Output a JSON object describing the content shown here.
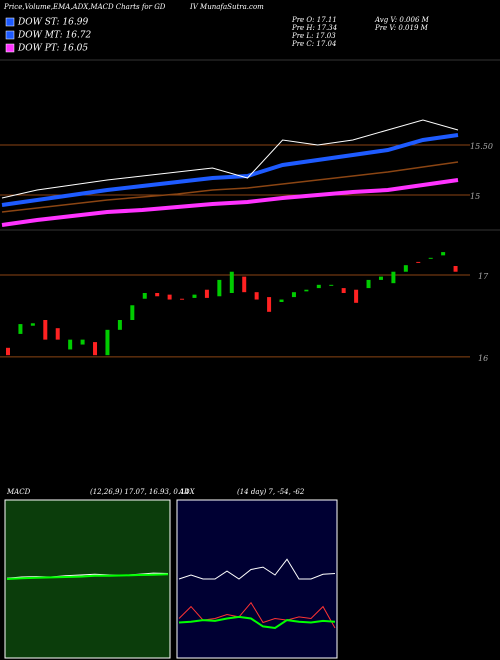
{
  "header": {
    "title": "Price,Volume,EMA,ADX,MACD Charts for GD",
    "site": "IV MunafaSutra.com",
    "legend": [
      {
        "text": "DOW ST: 16.99",
        "color": "#1e5bff"
      },
      {
        "text": "DOW MT: 16.72",
        "color": "#1e5bff"
      },
      {
        "text": "DOW PT: 16.05",
        "color": "#ff33ff"
      }
    ],
    "info": [
      "Pre  O: 17.11",
      "Pre  H: 17.34",
      "Pre  L: 17.03",
      "Pre  C: 17.04",
      "Avg V: 0.006  M",
      "Pre  V: 0.019 M"
    ]
  },
  "chart_data": [
    {
      "type": "line",
      "ylim": [
        14.65,
        16.35
      ],
      "yticks": [
        {
          "value": 15.5,
          "label": "15.50"
        },
        15
      ],
      "categories": [
        null,
        null,
        null,
        null,
        null,
        null,
        null,
        null,
        null,
        null,
        null,
        null,
        null,
        null
      ],
      "series": [
        {
          "color": "#8b4513",
          "width": 1.5,
          "values": [
            14.83,
            14.87,
            14.91,
            14.95,
            14.98,
            15.01,
            15.05,
            15.07,
            15.11,
            15.15,
            15.19,
            15.23,
            15.28,
            15.33
          ]
        },
        {
          "color": "#ff33ff",
          "width": 4,
          "values": [
            14.7,
            14.75,
            14.79,
            14.83,
            14.85,
            14.88,
            14.91,
            14.93,
            14.97,
            15.0,
            15.03,
            15.05,
            15.1,
            15.15
          ]
        },
        {
          "color": "#1e5bff",
          "width": 4,
          "values": [
            14.9,
            14.95,
            15.0,
            15.05,
            15.09,
            15.13,
            15.17,
            15.19,
            15.3,
            15.35,
            15.4,
            15.45,
            15.55,
            15.6
          ]
        },
        {
          "color": "#ffffff",
          "width": 1,
          "values": [
            14.97,
            15.05,
            15.1,
            15.15,
            15.19,
            15.23,
            15.27,
            15.17,
            15.55,
            15.5,
            15.55,
            15.65,
            15.75,
            15.65
          ]
        }
      ]
    },
    {
      "type": "candlestick",
      "ylim": [
        15.9,
        17.55
      ],
      "yticks": [
        17,
        16
      ],
      "up_color": "#00cc00",
      "down_color": "#ff2222",
      "categories": [
        null,
        null,
        null,
        null,
        null,
        null,
        null,
        null,
        null,
        null,
        null,
        null,
        null,
        null,
        null,
        null,
        null,
        null,
        null,
        null,
        null,
        null,
        null,
        null,
        null,
        null,
        null,
        null,
        null,
        null,
        null,
        null,
        null,
        null,
        null,
        null,
        null
      ],
      "open": [
        16.11,
        16.28,
        16.38,
        16.45,
        16.35,
        16.09,
        16.15,
        16.18,
        16.02,
        16.33,
        16.45,
        16.71,
        16.78,
        16.76,
        16.71,
        16.72,
        16.82,
        16.74,
        16.78,
        16.98,
        16.79,
        16.73,
        16.67,
        16.73,
        16.8,
        16.84,
        16.87,
        16.84,
        16.82,
        16.84,
        16.94,
        16.9,
        17.04,
        17.16,
        17.2,
        17.24,
        17.11
      ],
      "close": [
        16.02,
        16.4,
        16.41,
        16.21,
        16.21,
        16.21,
        16.21,
        16.02,
        16.33,
        16.45,
        16.63,
        16.78,
        16.74,
        16.7,
        16.7,
        16.76,
        16.72,
        16.94,
        17.04,
        16.79,
        16.7,
        16.55,
        16.7,
        16.79,
        16.82,
        16.88,
        16.88,
        16.78,
        16.66,
        16.94,
        16.98,
        17.04,
        17.12,
        17.15,
        17.21,
        17.28,
        17.04
      ]
    },
    {
      "type": "line",
      "title": "MACD",
      "subtitle": "(12,26,9) 17.07, 16.93, 0.14",
      "ylim": [
        -2,
        2
      ],
      "background": "#0b3d0b",
      "categories": [
        null,
        null,
        null,
        null,
        null,
        null,
        null,
        null,
        null,
        null,
        null,
        null
      ],
      "series": [
        {
          "color": "#ffffff",
          "width": 1,
          "values": [
            0.02,
            0.05,
            0.06,
            0.05,
            0.08,
            0.1,
            0.12,
            0.1,
            0.09,
            0.12,
            0.15,
            0.14
          ]
        },
        {
          "color": "#00ff00",
          "width": 2,
          "values": [
            0.0,
            0.02,
            0.03,
            0.04,
            0.05,
            0.06,
            0.08,
            0.08,
            0.09,
            0.1,
            0.11,
            0.12
          ]
        }
      ]
    },
    {
      "type": "line",
      "title": "ADX",
      "subtitle": "(14 day) 7, -54, -62",
      "ylim": [
        -100,
        100
      ],
      "background": "#000033",
      "categories": [
        null,
        null,
        null,
        null,
        null,
        null,
        null,
        null,
        null,
        null,
        null,
        null,
        null,
        null
      ],
      "series": [
        {
          "color": "#ffffff",
          "width": 1,
          "values": [
            0,
            5,
            0,
            0,
            10,
            0,
            12,
            15,
            5,
            25,
            0,
            0,
            6,
            7
          ]
        },
        {
          "color": "#ff3333",
          "width": 1,
          "values": [
            -50,
            -35,
            -52,
            -50,
            -45,
            -48,
            -30,
            -55,
            -50,
            -52,
            -48,
            -50,
            -35,
            -62
          ]
        },
        {
          "color": "#00ff00",
          "width": 2,
          "values": [
            -55,
            -54,
            -52,
            -53,
            -50,
            -48,
            -50,
            -60,
            -62,
            -52,
            -54,
            -55,
            -53,
            -54
          ]
        }
      ]
    }
  ]
}
